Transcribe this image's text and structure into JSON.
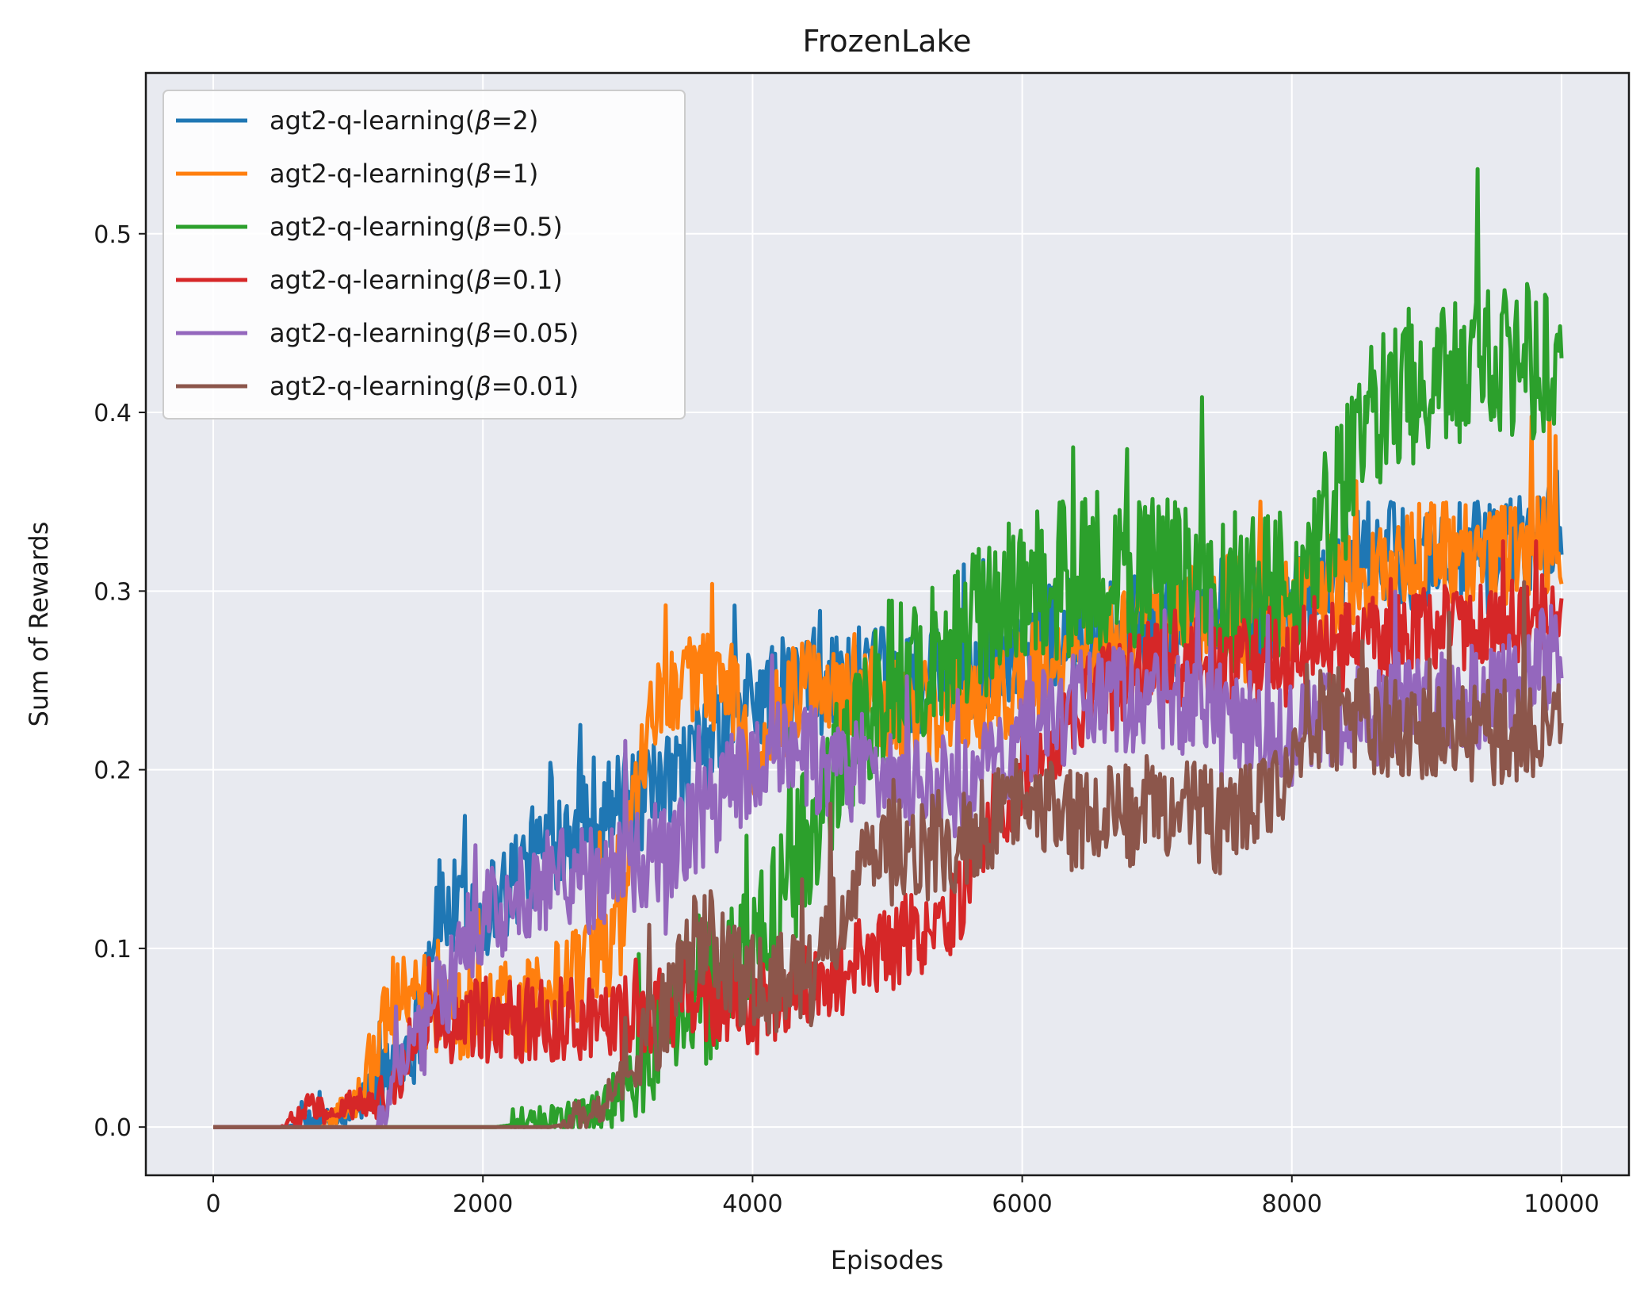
{
  "chart_data": {
    "type": "line",
    "title": "FrozenLake",
    "xlabel": "Episodes",
    "ylabel": "Sum of Rewards",
    "xlim": [
      -500,
      10500
    ],
    "ylim": [
      -0.027,
      0.59
    ],
    "xticks": [
      0,
      2000,
      4000,
      6000,
      8000,
      10000
    ],
    "xtick_labels": [
      "0",
      "2000",
      "4000",
      "6000",
      "8000",
      "10000"
    ],
    "yticks": [
      0.0,
      0.1,
      0.2,
      0.3,
      0.4,
      0.5
    ],
    "ytick_labels": [
      "0.0",
      "0.1",
      "0.2",
      "0.3",
      "0.4",
      "0.5"
    ],
    "grid": true,
    "legend_position": "top-left",
    "background": "#e8eaf0",
    "series": [
      {
        "name": "agt2-q-learning(β=2)",
        "legend_prefix": "agt2-q-learning(",
        "beta": "=2)",
        "color": "#1f77b4",
        "noise": 0.03,
        "knots": [
          [
            0,
            0
          ],
          [
            500,
            0
          ],
          [
            1000,
            0.005
          ],
          [
            1500,
            0.05
          ],
          [
            1650,
            0.12
          ],
          [
            2000,
            0.12
          ],
          [
            2500,
            0.16
          ],
          [
            2800,
            0.18
          ],
          [
            3200,
            0.18
          ],
          [
            3500,
            0.2
          ],
          [
            4000,
            0.24
          ],
          [
            4500,
            0.25
          ],
          [
            5000,
            0.25
          ],
          [
            5500,
            0.25
          ],
          [
            6000,
            0.27
          ],
          [
            6500,
            0.28
          ],
          [
            7000,
            0.28
          ],
          [
            7500,
            0.28
          ],
          [
            8000,
            0.29
          ],
          [
            8500,
            0.32
          ],
          [
            9000,
            0.32
          ],
          [
            9500,
            0.32
          ],
          [
            10000,
            0.34
          ]
        ]
      },
      {
        "name": "agt2-q-learning(β=1)",
        "legend_prefix": "agt2-q-learning(",
        "beta": "=1)",
        "color": "#ff7f0e",
        "noise": 0.03,
        "knots": [
          [
            0,
            0
          ],
          [
            800,
            0
          ],
          [
            1000,
            0.01
          ],
          [
            1200,
            0.04
          ],
          [
            1300,
            0.07
          ],
          [
            1500,
            0.07
          ],
          [
            2000,
            0.06
          ],
          [
            2500,
            0.07
          ],
          [
            3000,
            0.1
          ],
          [
            3200,
            0.22
          ],
          [
            3500,
            0.25
          ],
          [
            3800,
            0.25
          ],
          [
            4000,
            0.21
          ],
          [
            4300,
            0.24
          ],
          [
            4700,
            0.25
          ],
          [
            5200,
            0.23
          ],
          [
            6000,
            0.25
          ],
          [
            6500,
            0.27
          ],
          [
            7000,
            0.28
          ],
          [
            7500,
            0.29
          ],
          [
            8000,
            0.29
          ],
          [
            8500,
            0.31
          ],
          [
            9000,
            0.32
          ],
          [
            9500,
            0.32
          ],
          [
            10000,
            0.33
          ]
        ]
      },
      {
        "name": "agt2-q-learning(β=0.5)",
        "legend_prefix": "agt2-q-learning(",
        "beta": "=0.5)",
        "color": "#2ca02c",
        "noise": 0.045,
        "knots": [
          [
            0,
            0
          ],
          [
            2100,
            0
          ],
          [
            2300,
            0.002
          ],
          [
            2800,
            0.005
          ],
          [
            3000,
            0.015
          ],
          [
            3300,
            0.05
          ],
          [
            3800,
            0.09
          ],
          [
            4200,
            0.12
          ],
          [
            4600,
            0.2
          ],
          [
            5000,
            0.25
          ],
          [
            5500,
            0.27
          ],
          [
            6000,
            0.3
          ],
          [
            6500,
            0.31
          ],
          [
            7000,
            0.31
          ],
          [
            7500,
            0.3
          ],
          [
            8000,
            0.3
          ],
          [
            8300,
            0.34
          ],
          [
            8600,
            0.4
          ],
          [
            9000,
            0.42
          ],
          [
            9500,
            0.43
          ],
          [
            10000,
            0.43
          ]
        ]
      },
      {
        "name": "agt2-q-learning(β=0.1)",
        "legend_prefix": "agt2-q-learning(",
        "beta": "=0.1)",
        "color": "#d62728",
        "noise": 0.025,
        "knots": [
          [
            0,
            0
          ],
          [
            500,
            0
          ],
          [
            700,
            0.01
          ],
          [
            900,
            0.01
          ],
          [
            1000,
            0.012
          ],
          [
            1300,
            0.015
          ],
          [
            1500,
            0.05
          ],
          [
            2000,
            0.06
          ],
          [
            2500,
            0.06
          ],
          [
            3000,
            0.06
          ],
          [
            3500,
            0.07
          ],
          [
            4000,
            0.07
          ],
          [
            4500,
            0.08
          ],
          [
            5000,
            0.1
          ],
          [
            5500,
            0.12
          ],
          [
            6000,
            0.2
          ],
          [
            6500,
            0.24
          ],
          [
            7000,
            0.26
          ],
          [
            7500,
            0.26
          ],
          [
            8000,
            0.26
          ],
          [
            8500,
            0.27
          ],
          [
            9000,
            0.28
          ],
          [
            9500,
            0.28
          ],
          [
            10000,
            0.29
          ]
        ]
      },
      {
        "name": "agt2-q-learning(β=0.05)",
        "legend_prefix": "agt2-q-learning(",
        "beta": "=0.05)",
        "color": "#9467bd",
        "noise": 0.03,
        "knots": [
          [
            0,
            0
          ],
          [
            1200,
            0
          ],
          [
            1400,
            0.03
          ],
          [
            1600,
            0.06
          ],
          [
            1800,
            0.09
          ],
          [
            2000,
            0.12
          ],
          [
            2500,
            0.14
          ],
          [
            3000,
            0.14
          ],
          [
            3500,
            0.16
          ],
          [
            3800,
            0.19
          ],
          [
            4200,
            0.21
          ],
          [
            4800,
            0.2
          ],
          [
            5200,
            0.19
          ],
          [
            5600,
            0.19
          ],
          [
            6000,
            0.22
          ],
          [
            6500,
            0.24
          ],
          [
            7000,
            0.24
          ],
          [
            7500,
            0.23
          ],
          [
            8000,
            0.22
          ],
          [
            8500,
            0.23
          ],
          [
            9000,
            0.24
          ],
          [
            9500,
            0.24
          ],
          [
            10000,
            0.27
          ]
        ]
      },
      {
        "name": "agt2-q-learning(β=0.01)",
        "legend_prefix": "agt2-q-learning(",
        "beta": "=0.01)",
        "color": "#8c564b",
        "noise": 0.03,
        "knots": [
          [
            0,
            0
          ],
          [
            2500,
            0
          ],
          [
            2700,
            0.003
          ],
          [
            3000,
            0.02
          ],
          [
            3300,
            0.06
          ],
          [
            3600,
            0.11
          ],
          [
            4000,
            0.08
          ],
          [
            4400,
            0.08
          ],
          [
            4800,
            0.15
          ],
          [
            5500,
            0.16
          ],
          [
            6000,
            0.18
          ],
          [
            6500,
            0.17
          ],
          [
            7000,
            0.18
          ],
          [
            7500,
            0.17
          ],
          [
            8000,
            0.19
          ],
          [
            8100,
            0.23
          ],
          [
            8500,
            0.23
          ],
          [
            9000,
            0.22
          ],
          [
            9500,
            0.22
          ],
          [
            10000,
            0.23
          ]
        ]
      }
    ]
  }
}
